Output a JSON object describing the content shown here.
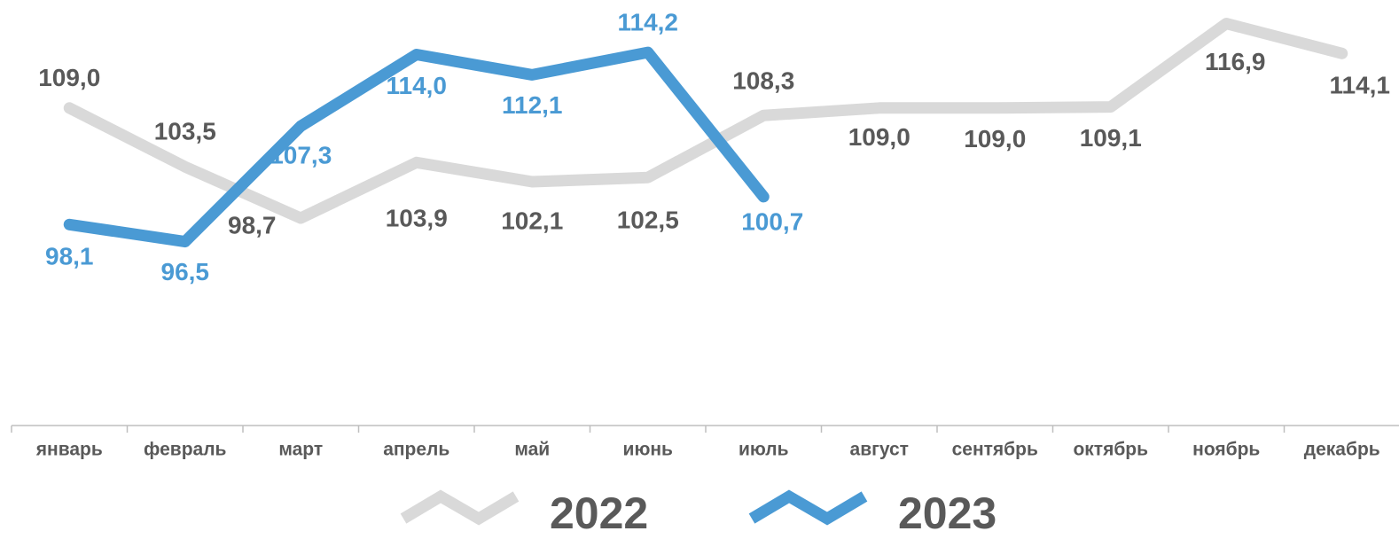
{
  "chart_data": {
    "type": "line",
    "categories": [
      "январь",
      "февраль",
      "март",
      "апрель",
      "май",
      "июнь",
      "июль",
      "август",
      "сентябрь",
      "октябрь",
      "ноябрь",
      "декабрь"
    ],
    "series": [
      {
        "name": "2022",
        "color": "#d9d9d9",
        "label_color": "#595959",
        "values": [
          109.0,
          103.5,
          98.7,
          103.9,
          102.1,
          102.5,
          108.3,
          109.0,
          109.0,
          109.1,
          116.9,
          114.1
        ],
        "value_labels": [
          "109,0",
          "103,5",
          "98,7",
          "103,9",
          "102,1",
          "102,5",
          "108,3",
          "109,0",
          "109,0",
          "109,1",
          "116,9",
          "114,1"
        ]
      },
      {
        "name": "2023",
        "color": "#4a9ad4",
        "label_color": "#4a9ad4",
        "values": [
          98.1,
          96.5,
          107.3,
          114.0,
          112.1,
          114.2,
          100.7,
          null,
          null,
          null,
          null,
          null
        ],
        "value_labels": [
          "98,1",
          "96,5",
          "107,3",
          "114,0",
          "112,1",
          "114,2",
          "100,7",
          null,
          null,
          null,
          null,
          null
        ]
      }
    ],
    "ylim": [
      79.3,
      119.1
    ],
    "grid": false
  }
}
